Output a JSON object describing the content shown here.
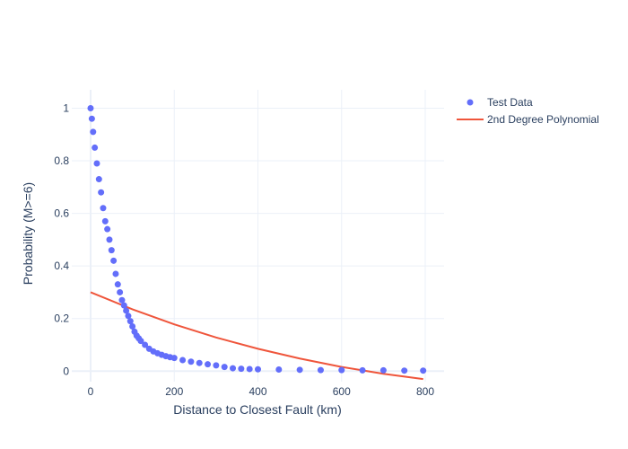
{
  "chart_data": {
    "type": "scatter",
    "xlabel": "Distance to Closest Fault (km)",
    "ylabel": "Probability (M>=6)",
    "xlim": [
      -45,
      845
    ],
    "ylim": [
      -0.04,
      1.07
    ],
    "x_ticks": [
      0,
      200,
      400,
      600,
      800
    ],
    "y_ticks": [
      0,
      0.2,
      0.4,
      0.6,
      0.8,
      1
    ],
    "x_tick_labels": [
      "0",
      "200",
      "400",
      "600",
      "800"
    ],
    "y_tick_labels": [
      "0",
      "0.2",
      "0.4",
      "0.6",
      "0.8",
      "1"
    ],
    "grid": true,
    "legend_position": "top-right",
    "series": [
      {
        "name": "Test Data",
        "mode": "markers",
        "color": "#636efa",
        "x": [
          0,
          3,
          6,
          10,
          15,
          20,
          25,
          30,
          35,
          40,
          45,
          50,
          55,
          60,
          65,
          70,
          75,
          80,
          85,
          90,
          95,
          100,
          105,
          110,
          115,
          120,
          130,
          140,
          150,
          160,
          170,
          180,
          190,
          200,
          220,
          240,
          260,
          280,
          300,
          320,
          340,
          360,
          380,
          400,
          450,
          500,
          550,
          600,
          650,
          700,
          750,
          795
        ],
        "y": [
          1.0,
          0.96,
          0.91,
          0.85,
          0.79,
          0.73,
          0.68,
          0.62,
          0.57,
          0.54,
          0.5,
          0.46,
          0.42,
          0.37,
          0.33,
          0.3,
          0.27,
          0.25,
          0.23,
          0.21,
          0.19,
          0.17,
          0.15,
          0.135,
          0.125,
          0.115,
          0.1,
          0.085,
          0.075,
          0.068,
          0.062,
          0.057,
          0.053,
          0.05,
          0.042,
          0.036,
          0.031,
          0.026,
          0.022,
          0.016,
          0.011,
          0.009,
          0.008,
          0.007,
          0.006,
          0.005,
          0.004,
          0.004,
          0.003,
          0.003,
          0.002,
          0.002
        ]
      },
      {
        "name": "2nd Degree Polynomial",
        "mode": "lines",
        "color": "#ef553b",
        "x": [
          0,
          100,
          200,
          300,
          400,
          500,
          600,
          700,
          795
        ],
        "y": [
          0.3,
          0.235,
          0.178,
          0.128,
          0.085,
          0.048,
          0.016,
          -0.01,
          -0.03
        ]
      }
    ]
  }
}
